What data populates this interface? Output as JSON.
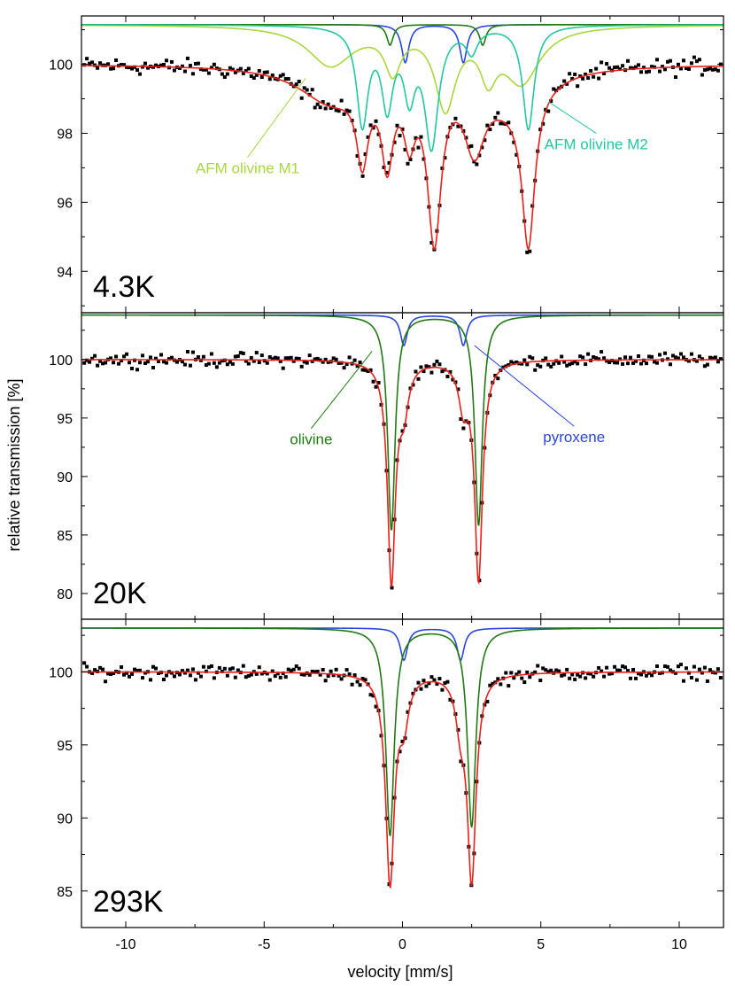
{
  "colors": {
    "data_points": "#000000",
    "fit_total": "#e8201a",
    "olivine": "#1f7a12",
    "pyroxene": "#2a46e0",
    "afm_m1": "#a8d83c",
    "afm_m2": "#22c8a0",
    "axes": "#000000"
  },
  "chart_data": {
    "type": "line",
    "xlabel": "velocity [mm/s]",
    "ylabel": "relative transmission [%]",
    "xlim": [
      -11.6,
      11.6
    ],
    "xticks": [
      -10,
      -5,
      0,
      5,
      10
    ],
    "panels": [
      {
        "temperature_label": "4.3K",
        "ylim": [
          92.8,
          101.4
        ],
        "yticks": [
          94,
          96,
          98,
          100
        ],
        "annotations": [
          {
            "text": "AFM olivine M1",
            "series": "afm_m1",
            "from": [
              -3.5,
              99.6
            ],
            "to": [
              -5.6,
              97.3
            ]
          },
          {
            "text": "AFM olivine M2",
            "series": "afm_m2",
            "from": [
              5.3,
              98.9
            ],
            "to": [
              7.0,
              98.0
            ]
          }
        ],
        "curves": [
          {
            "series": "pyroxene",
            "baseline": 101.15,
            "lines": [
              {
                "x0": 0.1,
                "depth": 1.1,
                "w": 0.16
              },
              {
                "x0": 2.2,
                "depth": 1.1,
                "w": 0.16
              }
            ]
          },
          {
            "series": "olivine",
            "baseline": 101.15,
            "lines": [
              {
                "x0": -0.45,
                "depth": 0.6,
                "w": 0.14
              },
              {
                "x0": 2.9,
                "depth": 0.6,
                "w": 0.14
              }
            ]
          },
          {
            "series": "afm_m1",
            "baseline": 101.15,
            "lines": [
              {
                "x0": -2.6,
                "depth": 1.15,
                "w": 1.0
              },
              {
                "x0": -0.35,
                "depth": 1.2,
                "w": 0.35
              },
              {
                "x0": 1.55,
                "depth": 2.3,
                "w": 0.45
              },
              {
                "x0": 3.1,
                "depth": 1.2,
                "w": 0.35
              },
              {
                "x0": 4.3,
                "depth": 1.6,
                "w": 0.8
              }
            ]
          },
          {
            "series": "afm_m2",
            "baseline": 101.15,
            "lines": [
              {
                "x0": -1.45,
                "depth": 2.8,
                "w": 0.25
              },
              {
                "x0": -0.55,
                "depth": 2.2,
                "w": 0.25
              },
              {
                "x0": 0.25,
                "depth": 1.8,
                "w": 0.25
              },
              {
                "x0": 1.05,
                "depth": 3.4,
                "w": 0.3
              },
              {
                "x0": 2.5,
                "depth": 0.7,
                "w": 0.25
              },
              {
                "x0": 4.55,
                "depth": 3.0,
                "w": 0.25
              }
            ]
          }
        ],
        "total_fit": {
          "baseline": 100.0,
          "lines": [
            {
              "x0": -2.6,
              "depth": 1.0,
              "w": 1.4
            },
            {
              "x0": -1.45,
              "depth": 2.2,
              "w": 0.25
            },
            {
              "x0": -0.55,
              "depth": 2.4,
              "w": 0.25
            },
            {
              "x0": 0.25,
              "depth": 1.6,
              "w": 0.25
            },
            {
              "x0": 1.15,
              "depth": 4.7,
              "w": 0.3
            },
            {
              "x0": 2.6,
              "depth": 2.0,
              "w": 0.45
            },
            {
              "x0": 4.55,
              "depth": 4.4,
              "w": 0.28
            },
            {
              "x0": 4.0,
              "depth": 0.9,
              "w": 1.3
            }
          ],
          "noise": 0.12
        }
      },
      {
        "temperature_label": "20K",
        "ylim": [
          77.8,
          104.0
        ],
        "yticks": [
          80,
          85,
          90,
          95,
          100
        ],
        "annotations": [
          {
            "text": "olivine",
            "series": "olivine",
            "from": [
              -1.1,
              100.7
            ],
            "to": [
              -3.3,
              94.1
            ]
          },
          {
            "text": "pyroxene",
            "series": "pyroxene",
            "from": [
              2.6,
              101.2
            ],
            "to": [
              6.2,
              94.3
            ]
          }
        ],
        "curves": [
          {
            "series": "pyroxene",
            "baseline": 103.8,
            "lines": [
              {
                "x0": 0.05,
                "depth": 2.6,
                "w": 0.15
              },
              {
                "x0": 2.2,
                "depth": 2.6,
                "w": 0.15
              }
            ]
          },
          {
            "series": "olivine",
            "baseline": 103.8,
            "lines": [
              {
                "x0": -0.4,
                "depth": 18.4,
                "w": 0.16
              },
              {
                "x0": 2.75,
                "depth": 18.0,
                "w": 0.16
              }
            ]
          }
        ],
        "total_fit": {
          "baseline": 100.0,
          "lines": [
            {
              "x0": -0.4,
              "depth": 18.8,
              "w": 0.17
            },
            {
              "x0": 2.75,
              "depth": 18.6,
              "w": 0.17
            },
            {
              "x0": 0.05,
              "depth": 3.6,
              "w": 0.2
            },
            {
              "x0": 2.2,
              "depth": 3.6,
              "w": 0.2
            }
          ],
          "noise": 0.3
        }
      },
      {
        "temperature_label": "293K",
        "ylim": [
          82.5,
          103.6
        ],
        "yticks": [
          85,
          90,
          95,
          100
        ],
        "annotations": [],
        "curves": [
          {
            "series": "pyroxene",
            "baseline": 103.0,
            "lines": [
              {
                "x0": 0.05,
                "depth": 2.2,
                "w": 0.16
              },
              {
                "x0": 2.1,
                "depth": 2.2,
                "w": 0.16
              }
            ]
          },
          {
            "series": "olivine",
            "baseline": 103.0,
            "lines": [
              {
                "x0": -0.45,
                "depth": 14.2,
                "w": 0.18
              },
              {
                "x0": 2.5,
                "depth": 13.6,
                "w": 0.18
              }
            ]
          }
        ],
        "total_fit": {
          "baseline": 100.0,
          "lines": [
            {
              "x0": -0.45,
              "depth": 14.3,
              "w": 0.19
            },
            {
              "x0": 2.5,
              "depth": 14.0,
              "w": 0.19
            },
            {
              "x0": 0.05,
              "depth": 2.9,
              "w": 0.2
            },
            {
              "x0": 2.1,
              "depth": 2.9,
              "w": 0.2
            }
          ],
          "noise": 0.25
        }
      }
    ]
  }
}
